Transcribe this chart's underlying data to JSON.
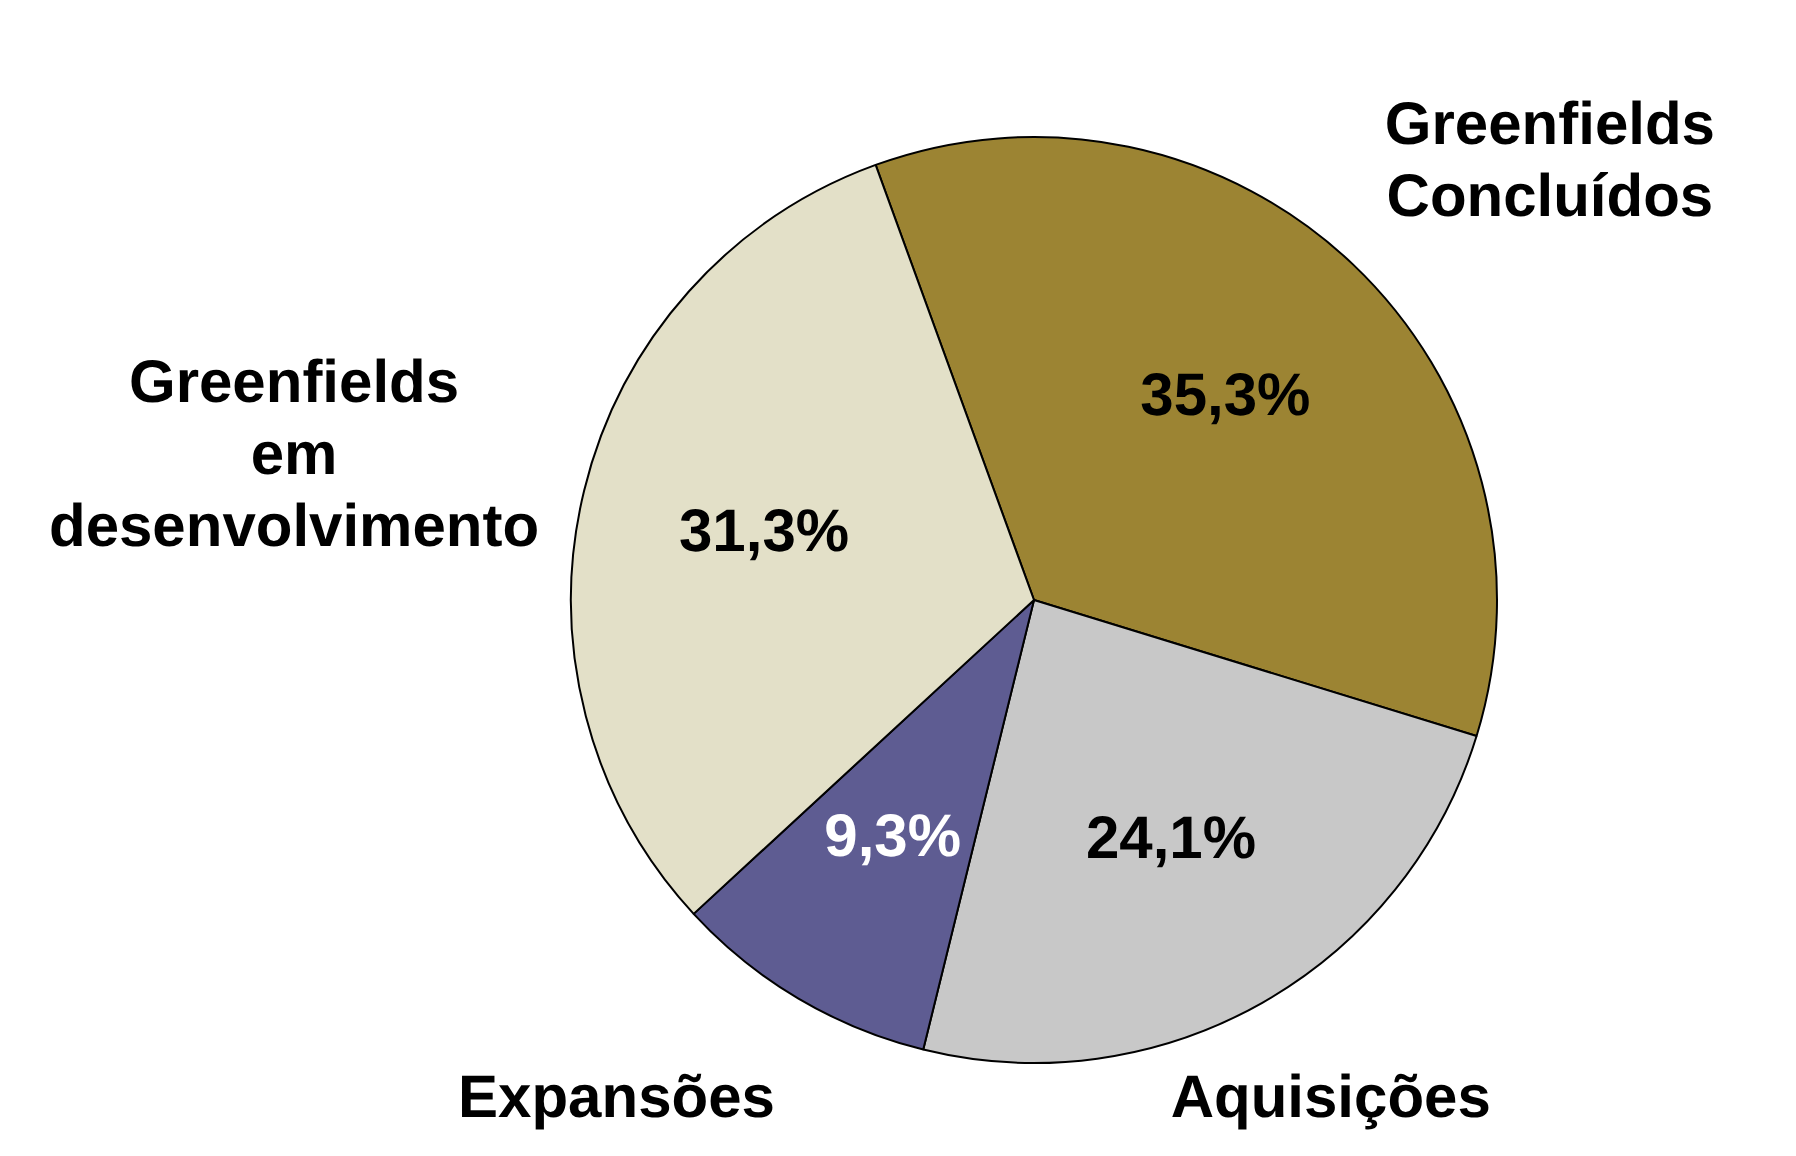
{
  "chart_data": {
    "type": "pie",
    "categories": [
      "Greenfields Concluídos",
      "Aquisições",
      "Expansões",
      "Greenfields em desenvolvimento"
    ],
    "values": [
      35.3,
      24.1,
      9.3,
      31.3
    ],
    "colors": [
      "#9c8433",
      "#c8c8c8",
      "#5e5c92",
      "#e3e0c8"
    ],
    "value_labels": [
      "35,3%",
      "24,1%",
      "9,3%",
      "31,3%"
    ],
    "legend": false
  }
}
